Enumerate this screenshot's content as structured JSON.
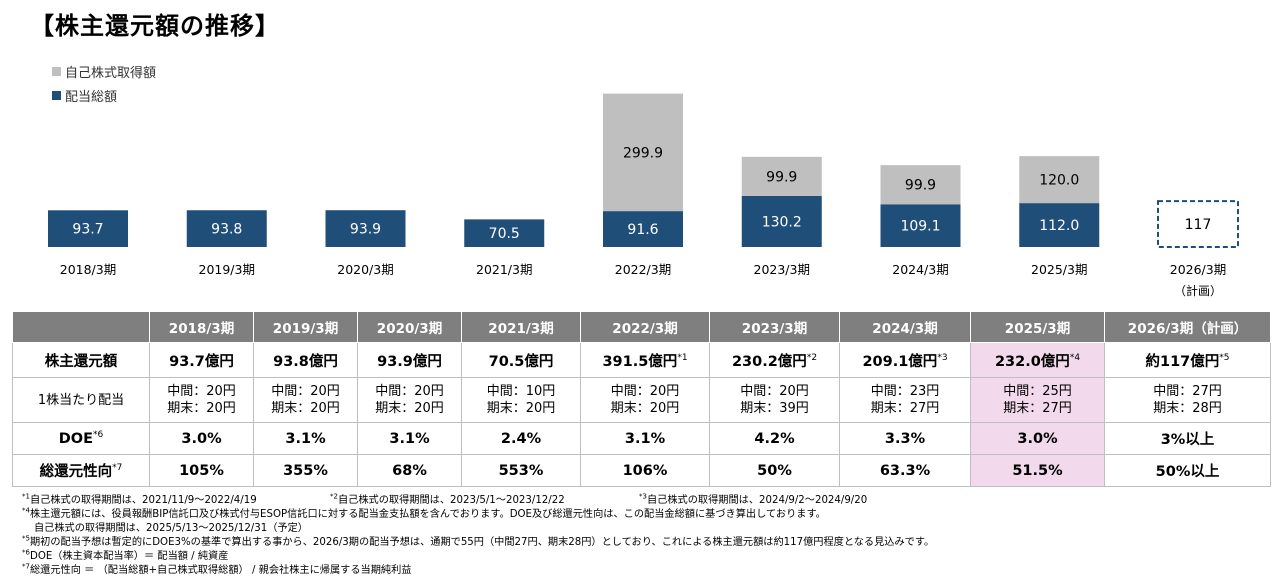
{
  "title": "【株主還元額の推移】",
  "legend": [
    {
      "label": "自己株式取得額",
      "color": "#bfbfbf"
    },
    {
      "label": "配当総額",
      "color": "#1f4e79"
    }
  ],
  "chart_data": {
    "type": "bar",
    "stacked": true,
    "categories": [
      "2018/3期",
      "2019/3期",
      "2020/3期",
      "2021/3期",
      "2022/3期",
      "2023/3期",
      "2024/3期",
      "2025/3期",
      "2026/3期"
    ],
    "category_sublabels": [
      "",
      "",
      "",
      "",
      "",
      "",
      "",
      "",
      "（計画）"
    ],
    "series": [
      {
        "name": "配当総額",
        "values": [
          93.7,
          93.8,
          93.9,
          70.5,
          91.6,
          130.2,
          109.1,
          112.0,
          null
        ],
        "labels": [
          "93.7",
          "93.8",
          "93.9",
          "70.5",
          "91.6",
          "130.2",
          "109.1",
          "112.0",
          ""
        ],
        "color": "#1f4e79"
      },
      {
        "name": "自己株式取得額",
        "values": [
          null,
          null,
          null,
          null,
          299.9,
          99.9,
          99.9,
          120.0,
          null
        ],
        "labels": [
          "",
          "",
          "",
          "",
          "299.9",
          "99.9",
          "99.9",
          "120.0",
          ""
        ],
        "color": "#bfbfbf"
      }
    ],
    "plan": {
      "category": "2026/3期",
      "value": 117,
      "label": "117",
      "style": "dashed-outline"
    },
    "grid": false,
    "legend_position": "top-left"
  },
  "table": {
    "headers": [
      "",
      "2018/3期",
      "2019/3期",
      "2020/3期",
      "2021/3期",
      "2022/3期",
      "2023/3期",
      "2024/3期",
      "2025/3期",
      "2026/3期（計画）"
    ],
    "rows": [
      {
        "label": "株主還元額",
        "label_sup": "",
        "cells": [
          {
            "text": "93.7億円",
            "sup": ""
          },
          {
            "text": "93.8億円",
            "sup": ""
          },
          {
            "text": "93.9億円",
            "sup": ""
          },
          {
            "text": "70.5億円",
            "sup": ""
          },
          {
            "text": "391.5億円",
            "sup": "*1"
          },
          {
            "text": "230.2億円",
            "sup": "*2"
          },
          {
            "text": "209.1億円",
            "sup": "*3"
          },
          {
            "text": "232.0億円",
            "sup": "*4"
          },
          {
            "text": "約117億円",
            "sup": "*5"
          }
        ]
      },
      {
        "label": "1株当たり配当",
        "label_sup": "",
        "cells": [
          {
            "line1": "中間：20円",
            "line2": "期末：20円"
          },
          {
            "line1": "中間：20円",
            "line2": "期末：20円"
          },
          {
            "line1": "中間：20円",
            "line2": "期末：20円"
          },
          {
            "line1": "中間：10円",
            "line2": "期末：20円"
          },
          {
            "line1": "中間：20円",
            "line2": "期末：20円"
          },
          {
            "line1": "中間：20円",
            "line2": "期末：39円"
          },
          {
            "line1": "中間：23円",
            "line2": "期末：27円"
          },
          {
            "line1": "中間：25円",
            "line2": "期末：27円"
          },
          {
            "line1": "中間：27円",
            "line2": "期末：28円"
          }
        ]
      },
      {
        "label": "DOE",
        "label_sup": "*6",
        "cells": [
          {
            "text": "3.0%"
          },
          {
            "text": "3.1%"
          },
          {
            "text": "3.1%"
          },
          {
            "text": "2.4%"
          },
          {
            "text": "3.1%"
          },
          {
            "text": "4.2%"
          },
          {
            "text": "3.3%"
          },
          {
            "text": "3.0%"
          },
          {
            "text": "3%以上"
          }
        ]
      },
      {
        "label": "総還元性向",
        "label_sup": "*7",
        "cells": [
          {
            "text": "105%"
          },
          {
            "text": "355%"
          },
          {
            "text": "68%"
          },
          {
            "text": "553%"
          },
          {
            "text": "106%"
          },
          {
            "text": "50%"
          },
          {
            "text": "63.3%"
          },
          {
            "text": "51.5%"
          },
          {
            "text": "50%以上"
          }
        ]
      }
    ],
    "highlight_column": "2025/3期"
  },
  "notes": {
    "n1": {
      "sup": "*1",
      "text": "自己株式の取得期間は、2021/11/9～2022/4/19"
    },
    "n2": {
      "sup": "*2",
      "text": "自己株式の取得期間は、2023/5/1～2023/12/22"
    },
    "n3": {
      "sup": "*3",
      "text": "自己株式の取得期間は、2024/9/2～2024/9/20"
    },
    "n4": {
      "sup": "*4",
      "text": "株主還元額には、役員報酬BIP信託口及び株式付与ESOP信託口に対する配当金支払額を含んでおります。DOE及び総還元性向は、この配当金総額に基づき算出しております。"
    },
    "n4b": {
      "text": "自己株式の取得期間は、2025/5/13～2025/12/31（予定）"
    },
    "n5": {
      "sup": "*5",
      "text": "期初の配当予想は暫定的にDOE3%の基準で算出する事から、2026/3期の配当予想は、通期で55円（中間27円、期末28円）としており、これによる株主還元額は約117億円程度となる見込みです。"
    },
    "n6": {
      "sup": "*6",
      "text": "DOE（株主資本配当率）＝ 配当額 / 純資産"
    },
    "n7": {
      "sup": "*7",
      "text": "総還元性向 ＝ （配当総額+自己株式取得総額） / 親会社株主に帰属する当期純利益"
    }
  }
}
